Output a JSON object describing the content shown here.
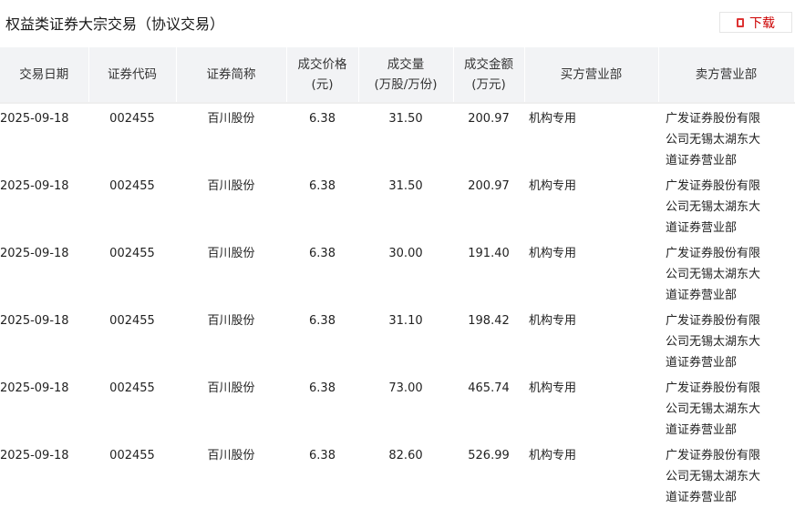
{
  "title": "权益类证券大宗交易（协议交易）",
  "download_label": "下载",
  "columns": [
    "交易日期",
    "证券代码",
    "证券简称",
    "成交价格\n(元)",
    "成交量\n(万股/万份)",
    "成交金额\n(万元)",
    "买方营业部",
    "卖方营业部"
  ],
  "rows": [
    [
      "2025-09-18",
      "002455",
      "百川股份",
      "6.38",
      "31.50",
      "200.97",
      "机构专用",
      "广发证券股份有限公司无锡太湖东大道证券营业部"
    ],
    [
      "2025-09-18",
      "002455",
      "百川股份",
      "6.38",
      "31.50",
      "200.97",
      "机构专用",
      "广发证券股份有限公司无锡太湖东大道证券营业部"
    ],
    [
      "2025-09-18",
      "002455",
      "百川股份",
      "6.38",
      "30.00",
      "191.40",
      "机构专用",
      "广发证券股份有限公司无锡太湖东大道证券营业部"
    ],
    [
      "2025-09-18",
      "002455",
      "百川股份",
      "6.38",
      "31.10",
      "198.42",
      "机构专用",
      "广发证券股份有限公司无锡太湖东大道证券营业部"
    ],
    [
      "2025-09-18",
      "002455",
      "百川股份",
      "6.38",
      "73.00",
      "465.74",
      "机构专用",
      "广发证券股份有限公司无锡太湖东大道证券营业部"
    ],
    [
      "2025-09-18",
      "002455",
      "百川股份",
      "6.38",
      "82.60",
      "526.99",
      "机构专用",
      "广发证券股份有限公司无锡太湖东大道证券营业部"
    ]
  ]
}
